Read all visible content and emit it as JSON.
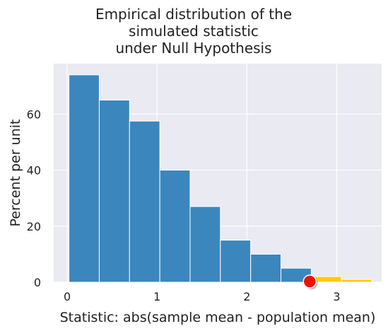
{
  "chart_data": {
    "type": "bar",
    "title_lines": [
      "Empirical distribution of the",
      "simulated statistic",
      "under Null Hypothesis"
    ],
    "xlabel": "Statistic: abs(sample mean - population mean)",
    "ylabel": "Percent per unit",
    "xlim": [
      -0.15,
      3.5
    ],
    "ylim": [
      0,
      78
    ],
    "xticks": [
      0,
      1,
      2,
      3
    ],
    "yticks": [
      0,
      20,
      40,
      60
    ],
    "grid": true,
    "bin_width": 0.337,
    "bins": [
      {
        "start": 0.02,
        "value": 74
      },
      {
        "start": 0.357,
        "value": 65
      },
      {
        "start": 0.694,
        "value": 57.5
      },
      {
        "start": 1.031,
        "value": 40
      },
      {
        "start": 1.368,
        "value": 27
      },
      {
        "start": 1.705,
        "value": 15
      },
      {
        "start": 2.042,
        "value": 10
      },
      {
        "start": 2.379,
        "value": 5
      },
      {
        "start": 2.716,
        "value": 2
      },
      {
        "start": 3.053,
        "value": 1
      }
    ],
    "highlight_from": 2.7,
    "observed_statistic": 2.7,
    "colors": {
      "bar": "#3c86be",
      "highlight": "#ffcc00",
      "marker": "#ee1100",
      "background": "#eaeaf2",
      "grid": "#ffffff"
    }
  }
}
